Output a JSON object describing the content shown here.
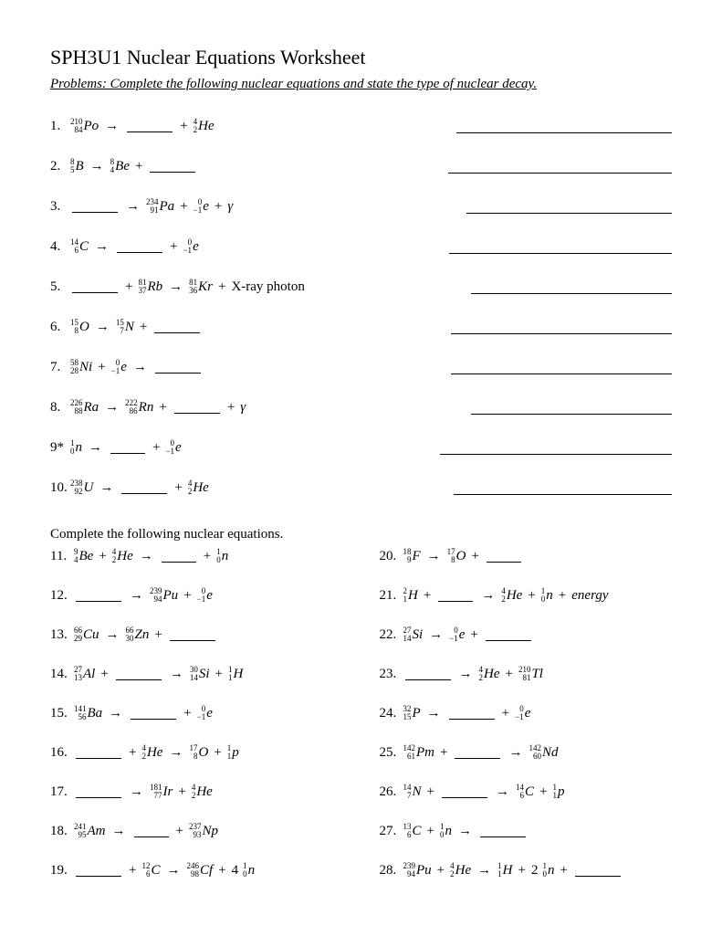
{
  "title": "SPH3U1 Nuclear Equations Worksheet",
  "instructions": "Problems: Complete the following nuclear equations and state the type of nuclear decay.",
  "section2_header": "Complete the following nuclear equations.",
  "p": {
    "n1": "1.",
    "n2": "2.",
    "n3": "3.",
    "n4": "4.",
    "n5": "5.",
    "n6": "6.",
    "n7": "7.",
    "n8": "8.",
    "n9": "9*",
    "n10": "10.",
    "n11": "11.",
    "n12": "12.",
    "n13": "13.",
    "n14": "14.",
    "n15": "15.",
    "n16": "16.",
    "n17": "17.",
    "n18": "18.",
    "n19": "19.",
    "n20": "20.",
    "n21": "21.",
    "n22": "22.",
    "n23": "23.",
    "n24": "24.",
    "n25": "25.",
    "n26": "26.",
    "n27": "27.",
    "n28": "28."
  },
  "txt": {
    "xray": "X-ray photon",
    "energy": "energy",
    "arrow": "→",
    "plus": "+",
    "gamma": "γ",
    "four": "4",
    "two": "2"
  },
  "iso": {
    "Po210": {
      "a": "210",
      "z": "84",
      "s": "Po"
    },
    "He4": {
      "a": "4",
      "z": "2",
      "s": "He"
    },
    "B8": {
      "a": "8",
      "z": "5",
      "s": "B"
    },
    "Be8": {
      "a": "8",
      "z": "4",
      "s": "Be"
    },
    "Pa234": {
      "a": "234",
      "z": "91",
      "s": "Pa"
    },
    "e0": {
      "a": "0",
      "z": "−1",
      "s": "e"
    },
    "C14": {
      "a": "14",
      "z": "6",
      "s": "C"
    },
    "Rb81": {
      "a": "81",
      "z": "37",
      "s": "Rb"
    },
    "Kr81": {
      "a": "81",
      "z": "36",
      "s": "Kr"
    },
    "O15": {
      "a": "15",
      "z": "8",
      "s": "O"
    },
    "N15": {
      "a": "15",
      "z": "7",
      "s": "N"
    },
    "Ni58": {
      "a": "58",
      "z": "28",
      "s": "Ni"
    },
    "Ra226": {
      "a": "226",
      "z": "88",
      "s": "Ra"
    },
    "Rn222": {
      "a": "222",
      "z": "86",
      "s": "Rn"
    },
    "n1": {
      "a": "1",
      "z": "0",
      "s": "n"
    },
    "U238": {
      "a": "238",
      "z": "92",
      "s": "U"
    },
    "Be9": {
      "a": "9",
      "z": "4",
      "s": "Be"
    },
    "Pu239": {
      "a": "239",
      "z": "94",
      "s": "Pu"
    },
    "Cu66": {
      "a": "66",
      "z": "29",
      "s": "Cu"
    },
    "Zn66": {
      "a": "66",
      "z": "30",
      "s": "Zn"
    },
    "Al27": {
      "a": "27",
      "z": "13",
      "s": "Al"
    },
    "Si30": {
      "a": "30",
      "z": "14",
      "s": "Si"
    },
    "H1": {
      "a": "1",
      "z": "1",
      "s": "H"
    },
    "Ba141": {
      "a": "141",
      "z": "56",
      "s": "Ba"
    },
    "O17": {
      "a": "17",
      "z": "8",
      "s": "O"
    },
    "p1": {
      "a": "1",
      "z": "1",
      "s": "p"
    },
    "Ir181": {
      "a": "181",
      "z": "77",
      "s": "Ir"
    },
    "Am241": {
      "a": "241",
      "z": "95",
      "s": "Am"
    },
    "Np237": {
      "a": "237",
      "z": "93",
      "s": "Np"
    },
    "C12": {
      "a": "12",
      "z": "6",
      "s": "C"
    },
    "Cf246": {
      "a": "246",
      "z": "98",
      "s": "Cf"
    },
    "F18": {
      "a": "18",
      "z": "9",
      "s": "F"
    },
    "H2": {
      "a": "2",
      "z": "1",
      "s": "H"
    },
    "Si27": {
      "a": "27",
      "z": "14",
      "s": "Si"
    },
    "Tl210": {
      "a": "210",
      "z": "81",
      "s": "Tl"
    },
    "P32": {
      "a": "32",
      "z": "15",
      "s": "P"
    },
    "Pm142": {
      "a": "142",
      "z": "61",
      "s": "Pm"
    },
    "Nd142": {
      "a": "142",
      "z": "60",
      "s": "Nd"
    },
    "N14": {
      "a": "14",
      "z": "7",
      "s": "N"
    },
    "C13": {
      "a": "13",
      "z": "6",
      "s": "C"
    }
  }
}
